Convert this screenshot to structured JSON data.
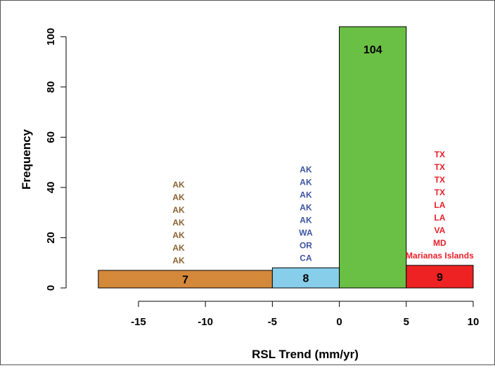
{
  "chart_data": {
    "type": "bar",
    "title": "",
    "xlabel": "RSL Trend (mm/yr)",
    "ylabel": "Frequency",
    "xlim": [
      -18.2,
      10.0
    ],
    "ylim": [
      0,
      104
    ],
    "xticks": [
      -15,
      -10,
      -5,
      0,
      5,
      10
    ],
    "yticks": [
      0,
      20,
      40,
      60,
      80,
      100
    ],
    "grid": false,
    "bins": [
      {
        "x0": -18,
        "x1": -5,
        "value": 7,
        "count_label": "7",
        "color": "#d4883a",
        "annotation_color": "#8b6433",
        "annotations": [
          "AK",
          "AK",
          "AK",
          "AK",
          "AK",
          "AK",
          "AK"
        ]
      },
      {
        "x0": -5,
        "x1": 0,
        "value": 8,
        "count_label": "8",
        "color": "#87ceeb",
        "annotation_color": "#3d55a0",
        "annotations": [
          "AK",
          "AK",
          "AK",
          "AK",
          "AK",
          "WA",
          "OR",
          "CA"
        ]
      },
      {
        "x0": 0,
        "x1": 5,
        "value": 104,
        "count_label": "104",
        "color": "#6abf45",
        "annotation_color": "#000000",
        "annotations": []
      },
      {
        "x0": 5,
        "x1": 10,
        "value": 9,
        "count_label": "9",
        "color": "#ee2222",
        "annotation_color": "#e8202a",
        "annotations": [
          "TX",
          "TX",
          "TX",
          "TX",
          "LA",
          "LA",
          "VA",
          "MD",
          "Marianas Islands"
        ]
      }
    ]
  }
}
